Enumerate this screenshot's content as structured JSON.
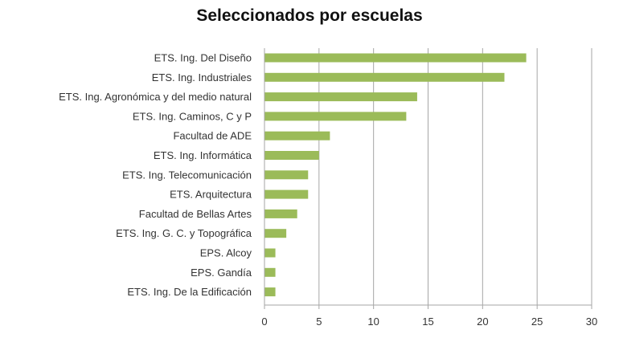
{
  "chart_data": {
    "type": "bar",
    "orientation": "horizontal",
    "title": "Seleccionados por escuelas",
    "categories": [
      "ETS. Ing. Del Diseño",
      "ETS. Ing. Industriales",
      "ETS. Ing. Agronómica y del medio natural",
      "ETS. Ing. Caminos, C y P",
      "Facultad de ADE",
      "ETS. Ing. Informática",
      "ETS. Ing. Telecomunicación",
      "ETS. Arquitectura",
      "Facultad de Bellas Artes",
      "ETS. Ing. G. C. y Topográfica",
      "EPS. Alcoy",
      "EPS. Gandía",
      "ETS. Ing. De la Edificación"
    ],
    "values": [
      24,
      22,
      14,
      13,
      6,
      5,
      4,
      4,
      3,
      2,
      1,
      1,
      1
    ],
    "xlim": [
      0,
      30
    ],
    "xticks": [
      0,
      5,
      10,
      15,
      20,
      25,
      30
    ],
    "grid": true,
    "bar_color": "#9bbb59",
    "grid_color": "#a6a6a6"
  }
}
